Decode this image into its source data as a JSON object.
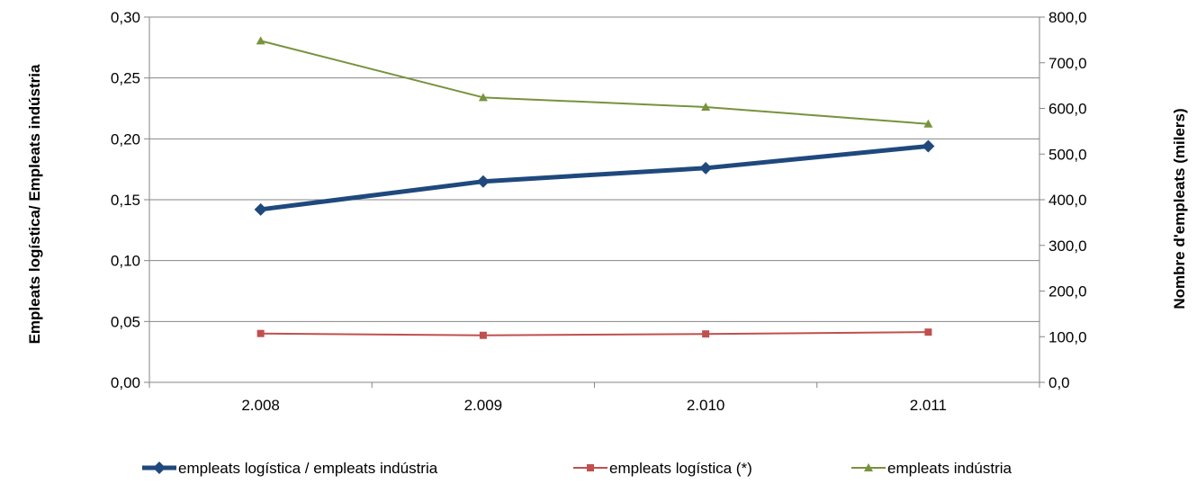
{
  "chart_data": {
    "type": "line",
    "categories": [
      "2.008",
      "2.009",
      "2.010",
      "2.011"
    ],
    "ylabel_left": "Empleats logística/ Empleats indústria",
    "ylabel_right": "Nombre d'empleats (milers)",
    "y_left_range": [
      0,
      0.3
    ],
    "y_left_ticks": [
      "0,00",
      "0,05",
      "0,10",
      "0,15",
      "0,20",
      "0,25",
      "0,30"
    ],
    "y_right_range": [
      0,
      800
    ],
    "y_right_ticks": [
      "0,0",
      "100,0",
      "200,0",
      "300,0",
      "400,0",
      "500,0",
      "600,0",
      "700,0",
      "800,0"
    ],
    "grid": true,
    "legend_position": "bottom",
    "series": [
      {
        "name": "empleats logística / empleats indústria",
        "axis": "left",
        "values": [
          0.142,
          0.165,
          0.176,
          0.194
        ],
        "color": "#1F497D",
        "marker": "diamond"
      },
      {
        "name": "empleats logística (*)",
        "axis": "right",
        "values": [
          107,
          103,
          106,
          110
        ],
        "color": "#C0504D",
        "marker": "square"
      },
      {
        "name": "empleats indústria",
        "axis": "right",
        "values": [
          748,
          624,
          603,
          566
        ],
        "color": "#77933C",
        "marker": "triangle"
      }
    ]
  }
}
